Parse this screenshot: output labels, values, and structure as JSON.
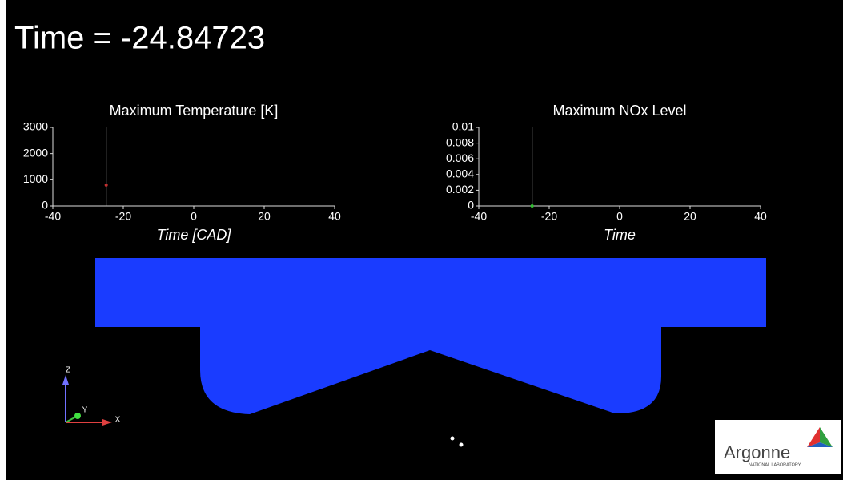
{
  "time_label": "Time = -24.84723",
  "chart_data": [
    {
      "type": "line",
      "title": "Maximum Temperature [K]",
      "x_label": "Time [CAD]",
      "x": [
        -24.84723
      ],
      "values": [
        800
      ],
      "color": "#c03030",
      "xlim": [
        -40,
        40
      ],
      "xticks": [
        -40,
        -20,
        0,
        20,
        40
      ],
      "ylim": [
        0,
        3000
      ],
      "yticks": [
        0,
        1000,
        2000,
        3000
      ]
    },
    {
      "type": "line",
      "title": "Maximum NOx Level",
      "x_label": "Time",
      "x": [
        -24.84723
      ],
      "values": [
        0
      ],
      "color": "#30c030",
      "xlim": [
        -40,
        40
      ],
      "xticks": [
        -40,
        -20,
        0,
        20,
        40
      ],
      "ylim": [
        0,
        0.01
      ],
      "yticks": [
        0,
        0.002,
        0.004,
        0.006,
        0.008,
        0.01
      ]
    }
  ],
  "triad": {
    "z": "Z",
    "y": "Y",
    "x": "X"
  },
  "logo": {
    "name": "Argonne",
    "subtitle": "NATIONAL LABORATORY"
  }
}
